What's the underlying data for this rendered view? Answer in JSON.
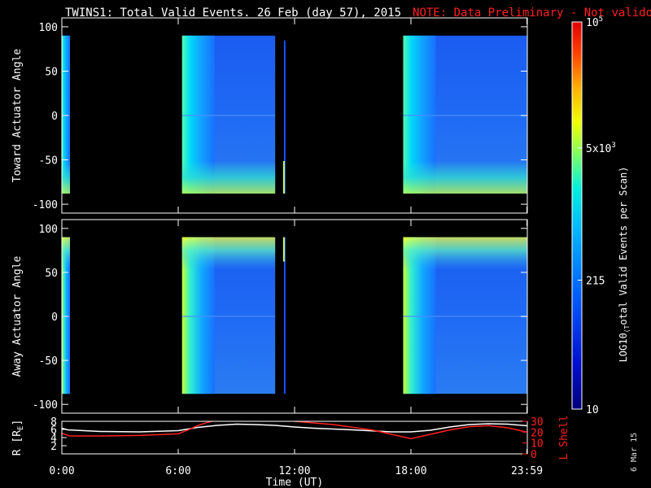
{
  "header": {
    "title": "TWINS1: Total Valid Events. 26 Feb (day  57), 2015",
    "note": "NOTE: Data Preliminary - Not validoted"
  },
  "footer": {
    "date_stamp": "6 Mar 15"
  },
  "chart_data": [
    {
      "type": "heatmap",
      "name": "toward-panel",
      "ylabel": "Toward Actuator Angle",
      "ylim": [
        -110,
        110
      ],
      "yticks": [
        -100,
        -50,
        0,
        50,
        100
      ],
      "xlim_hours": [
        0,
        24
      ],
      "data_blocks_hours": [
        [
          0.0,
          0.42
        ],
        [
          6.2,
          11.0
        ],
        [
          11.45,
          11.52
        ],
        [
          17.6,
          24.0
        ]
      ],
      "angle_range": [
        -88,
        90
      ]
    },
    {
      "type": "heatmap",
      "name": "away-panel",
      "ylabel": "Away Actuator Angle",
      "ylim": [
        -110,
        110
      ],
      "yticks": [
        -100,
        -50,
        0,
        50,
        100
      ],
      "xlim_hours": [
        0,
        24
      ],
      "data_blocks_hours": [
        [
          0.0,
          0.42
        ],
        [
          6.2,
          11.0
        ],
        [
          11.45,
          11.52
        ],
        [
          17.6,
          24.0
        ]
      ],
      "angle_range": [
        -88,
        90
      ]
    },
    {
      "type": "line",
      "name": "orbit-panel",
      "xlabel": "Time (UT)",
      "xticks": [
        "0:00",
        "6:00",
        "12:00",
        "18:00",
        "23:59"
      ],
      "xtick_hours": [
        0,
        6,
        12,
        18,
        23.98
      ],
      "ylabel_left": "R [RE]",
      "ylim_left": [
        0,
        8
      ],
      "yticks_left": [
        2,
        4,
        6,
        8
      ],
      "ylabel_right": "L Shell",
      "ylim_right": [
        0,
        30
      ],
      "yticks_right": [
        0,
        10,
        20,
        30
      ],
      "series": [
        {
          "name": "R [RE]",
          "color": "#ffffff",
          "x": [
            0,
            0.3,
            2,
            4,
            6,
            7,
            8,
            9,
            10,
            11,
            12,
            13,
            15,
            17,
            18,
            19,
            20,
            21,
            22,
            23,
            24
          ],
          "y": [
            6.3,
            5.9,
            5.5,
            5.4,
            5.7,
            6.5,
            7.0,
            7.3,
            7.2,
            7.0,
            6.6,
            6.3,
            5.9,
            5.4,
            5.4,
            5.8,
            6.6,
            7.2,
            7.4,
            7.3,
            6.9
          ]
        },
        {
          "name": "L Shell",
          "color": "#ff2020",
          "x": [
            0,
            0.4,
            2,
            4,
            6,
            6.5,
            7,
            7.5,
            8,
            11.9,
            12,
            14,
            16,
            18,
            19,
            20,
            21,
            22,
            23,
            24
          ],
          "y": [
            19,
            16.5,
            16.5,
            17,
            18.5,
            22,
            26,
            29,
            31,
            31,
            30,
            27,
            22,
            14,
            18,
            22,
            25,
            26,
            24,
            20
          ]
        }
      ]
    }
  ],
  "colorbar": {
    "label": "LOG10(Total Valid Events per Scan)",
    "ticks": [
      {
        "label": "10^5",
        "value": 100000
      },
      {
        "label": "5x10^3",
        "value": 5000
      },
      {
        "label": "215",
        "value": 215
      },
      {
        "label": "10",
        "value": 10
      }
    ]
  }
}
